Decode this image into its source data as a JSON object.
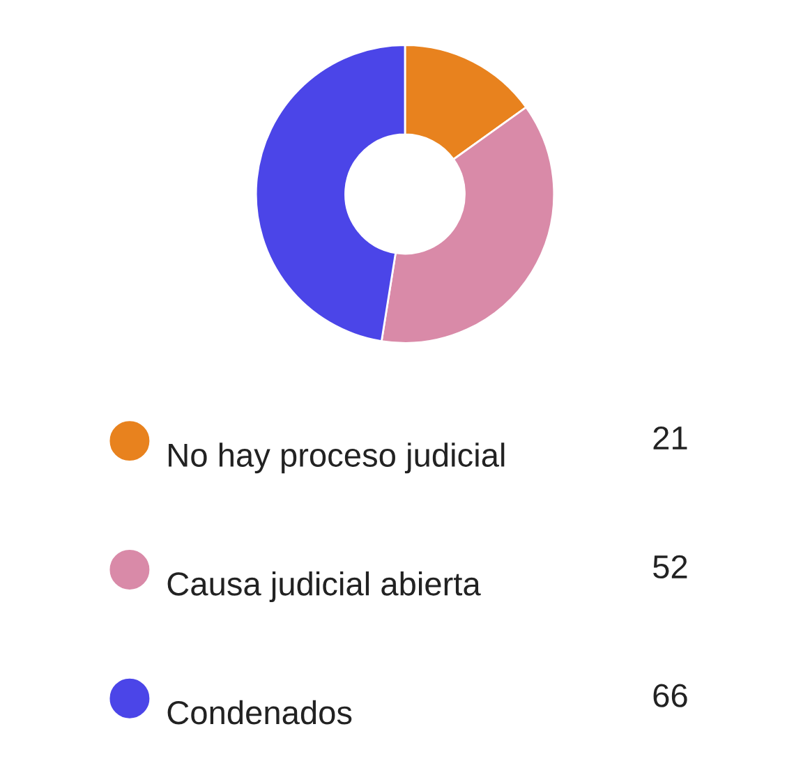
{
  "chart_data": {
    "type": "donut",
    "categories": [
      "No hay proceso judicial",
      "Causa judicial abierta",
      "Condenados"
    ],
    "values": [
      21,
      52,
      66
    ],
    "colors": [
      "#e8821e",
      "#d98aa8",
      "#4b45e8"
    ],
    "data_labels": true,
    "legend": "bottom"
  }
}
